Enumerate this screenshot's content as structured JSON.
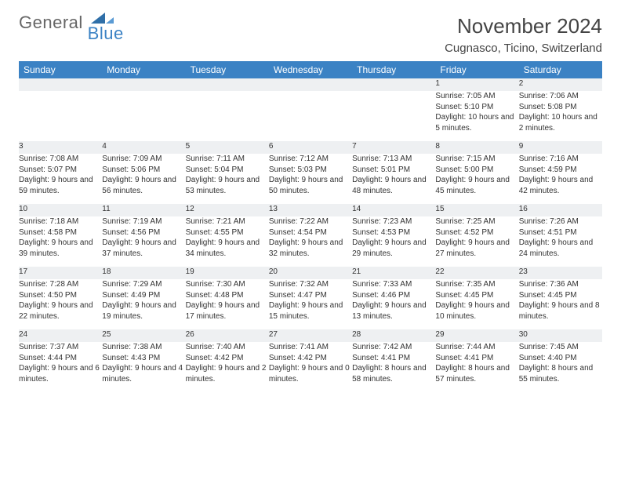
{
  "brand": {
    "part1": "General",
    "part2": "Blue"
  },
  "title": "November 2024",
  "location": "Cugnasco, Ticino, Switzerland",
  "colors": {
    "header_bg": "#3b82c4",
    "header_text": "#ffffff",
    "daynum_bg": "#eef0f2",
    "row_border": "#2f6fa8",
    "text": "#333333",
    "title_text": "#444444"
  },
  "weekdays": [
    "Sunday",
    "Monday",
    "Tuesday",
    "Wednesday",
    "Thursday",
    "Friday",
    "Saturday"
  ],
  "weeks": [
    [
      {
        "day": "",
        "sunrise": "",
        "sunset": "",
        "daylight": ""
      },
      {
        "day": "",
        "sunrise": "",
        "sunset": "",
        "daylight": ""
      },
      {
        "day": "",
        "sunrise": "",
        "sunset": "",
        "daylight": ""
      },
      {
        "day": "",
        "sunrise": "",
        "sunset": "",
        "daylight": ""
      },
      {
        "day": "",
        "sunrise": "",
        "sunset": "",
        "daylight": ""
      },
      {
        "day": "1",
        "sunrise": "Sunrise: 7:05 AM",
        "sunset": "Sunset: 5:10 PM",
        "daylight": "Daylight: 10 hours and 5 minutes."
      },
      {
        "day": "2",
        "sunrise": "Sunrise: 7:06 AM",
        "sunset": "Sunset: 5:08 PM",
        "daylight": "Daylight: 10 hours and 2 minutes."
      }
    ],
    [
      {
        "day": "3",
        "sunrise": "Sunrise: 7:08 AM",
        "sunset": "Sunset: 5:07 PM",
        "daylight": "Daylight: 9 hours and 59 minutes."
      },
      {
        "day": "4",
        "sunrise": "Sunrise: 7:09 AM",
        "sunset": "Sunset: 5:06 PM",
        "daylight": "Daylight: 9 hours and 56 minutes."
      },
      {
        "day": "5",
        "sunrise": "Sunrise: 7:11 AM",
        "sunset": "Sunset: 5:04 PM",
        "daylight": "Daylight: 9 hours and 53 minutes."
      },
      {
        "day": "6",
        "sunrise": "Sunrise: 7:12 AM",
        "sunset": "Sunset: 5:03 PM",
        "daylight": "Daylight: 9 hours and 50 minutes."
      },
      {
        "day": "7",
        "sunrise": "Sunrise: 7:13 AM",
        "sunset": "Sunset: 5:01 PM",
        "daylight": "Daylight: 9 hours and 48 minutes."
      },
      {
        "day": "8",
        "sunrise": "Sunrise: 7:15 AM",
        "sunset": "Sunset: 5:00 PM",
        "daylight": "Daylight: 9 hours and 45 minutes."
      },
      {
        "day": "9",
        "sunrise": "Sunrise: 7:16 AM",
        "sunset": "Sunset: 4:59 PM",
        "daylight": "Daylight: 9 hours and 42 minutes."
      }
    ],
    [
      {
        "day": "10",
        "sunrise": "Sunrise: 7:18 AM",
        "sunset": "Sunset: 4:58 PM",
        "daylight": "Daylight: 9 hours and 39 minutes."
      },
      {
        "day": "11",
        "sunrise": "Sunrise: 7:19 AM",
        "sunset": "Sunset: 4:56 PM",
        "daylight": "Daylight: 9 hours and 37 minutes."
      },
      {
        "day": "12",
        "sunrise": "Sunrise: 7:21 AM",
        "sunset": "Sunset: 4:55 PM",
        "daylight": "Daylight: 9 hours and 34 minutes."
      },
      {
        "day": "13",
        "sunrise": "Sunrise: 7:22 AM",
        "sunset": "Sunset: 4:54 PM",
        "daylight": "Daylight: 9 hours and 32 minutes."
      },
      {
        "day": "14",
        "sunrise": "Sunrise: 7:23 AM",
        "sunset": "Sunset: 4:53 PM",
        "daylight": "Daylight: 9 hours and 29 minutes."
      },
      {
        "day": "15",
        "sunrise": "Sunrise: 7:25 AM",
        "sunset": "Sunset: 4:52 PM",
        "daylight": "Daylight: 9 hours and 27 minutes."
      },
      {
        "day": "16",
        "sunrise": "Sunrise: 7:26 AM",
        "sunset": "Sunset: 4:51 PM",
        "daylight": "Daylight: 9 hours and 24 minutes."
      }
    ],
    [
      {
        "day": "17",
        "sunrise": "Sunrise: 7:28 AM",
        "sunset": "Sunset: 4:50 PM",
        "daylight": "Daylight: 9 hours and 22 minutes."
      },
      {
        "day": "18",
        "sunrise": "Sunrise: 7:29 AM",
        "sunset": "Sunset: 4:49 PM",
        "daylight": "Daylight: 9 hours and 19 minutes."
      },
      {
        "day": "19",
        "sunrise": "Sunrise: 7:30 AM",
        "sunset": "Sunset: 4:48 PM",
        "daylight": "Daylight: 9 hours and 17 minutes."
      },
      {
        "day": "20",
        "sunrise": "Sunrise: 7:32 AM",
        "sunset": "Sunset: 4:47 PM",
        "daylight": "Daylight: 9 hours and 15 minutes."
      },
      {
        "day": "21",
        "sunrise": "Sunrise: 7:33 AM",
        "sunset": "Sunset: 4:46 PM",
        "daylight": "Daylight: 9 hours and 13 minutes."
      },
      {
        "day": "22",
        "sunrise": "Sunrise: 7:35 AM",
        "sunset": "Sunset: 4:45 PM",
        "daylight": "Daylight: 9 hours and 10 minutes."
      },
      {
        "day": "23",
        "sunrise": "Sunrise: 7:36 AM",
        "sunset": "Sunset: 4:45 PM",
        "daylight": "Daylight: 9 hours and 8 minutes."
      }
    ],
    [
      {
        "day": "24",
        "sunrise": "Sunrise: 7:37 AM",
        "sunset": "Sunset: 4:44 PM",
        "daylight": "Daylight: 9 hours and 6 minutes."
      },
      {
        "day": "25",
        "sunrise": "Sunrise: 7:38 AM",
        "sunset": "Sunset: 4:43 PM",
        "daylight": "Daylight: 9 hours and 4 minutes."
      },
      {
        "day": "26",
        "sunrise": "Sunrise: 7:40 AM",
        "sunset": "Sunset: 4:42 PM",
        "daylight": "Daylight: 9 hours and 2 minutes."
      },
      {
        "day": "27",
        "sunrise": "Sunrise: 7:41 AM",
        "sunset": "Sunset: 4:42 PM",
        "daylight": "Daylight: 9 hours and 0 minutes."
      },
      {
        "day": "28",
        "sunrise": "Sunrise: 7:42 AM",
        "sunset": "Sunset: 4:41 PM",
        "daylight": "Daylight: 8 hours and 58 minutes."
      },
      {
        "day": "29",
        "sunrise": "Sunrise: 7:44 AM",
        "sunset": "Sunset: 4:41 PM",
        "daylight": "Daylight: 8 hours and 57 minutes."
      },
      {
        "day": "30",
        "sunrise": "Sunrise: 7:45 AM",
        "sunset": "Sunset: 4:40 PM",
        "daylight": "Daylight: 8 hours and 55 minutes."
      }
    ]
  ]
}
